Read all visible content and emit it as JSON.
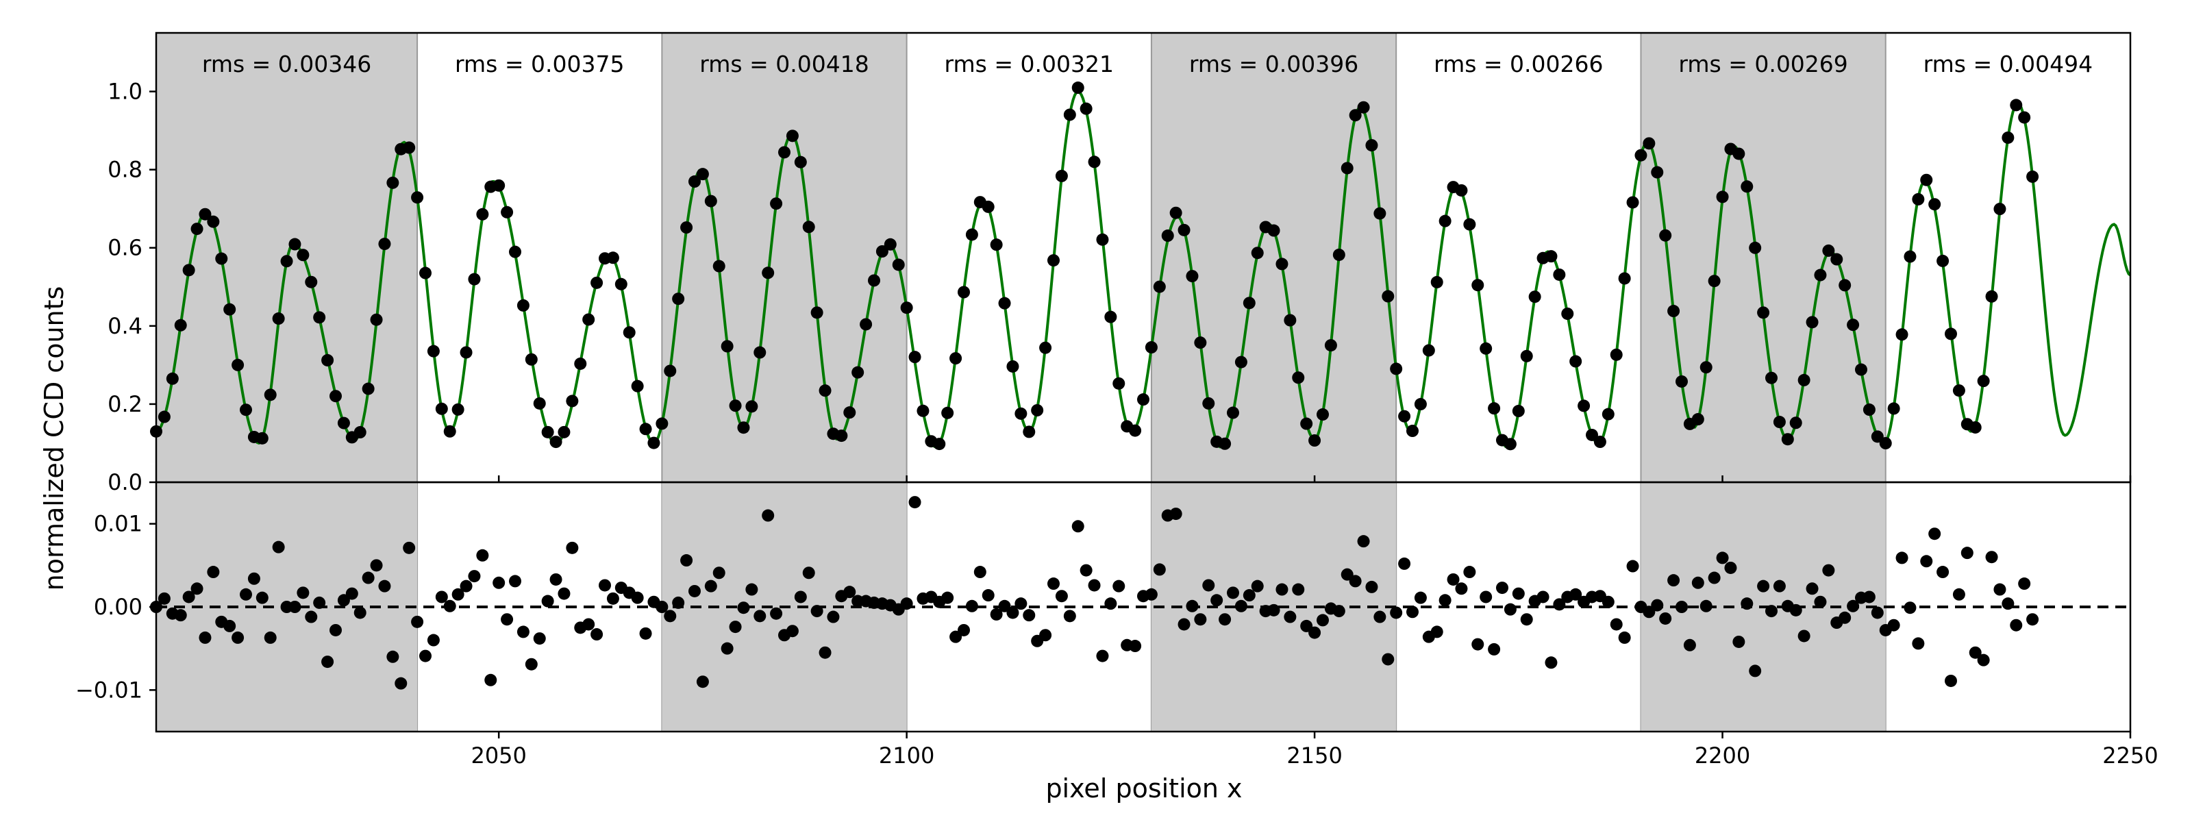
{
  "chart_data": [
    {
      "type": "scatter+line",
      "panel": "top",
      "xlabel": "",
      "ylabel": "normalized CCD counts",
      "xlim": [
        2008,
        2250
      ],
      "ylim": [
        0.0,
        1.15
      ],
      "y_ticks": [
        0.0,
        0.2,
        0.4,
        0.6,
        0.8,
        1.0
      ],
      "y_tick_labels": [
        "0.0",
        "0.2",
        "0.4",
        "0.6",
        "0.8",
        "1.0"
      ],
      "shaded_segments": [
        [
          2008,
          2040
        ],
        [
          2070,
          2100
        ],
        [
          2130,
          2160
        ],
        [
          2190,
          2220
        ]
      ],
      "segments": [
        {
          "x_range": [
            2008,
            2040
          ],
          "rms_label": "rms = 0.00346"
        },
        {
          "x_range": [
            2040,
            2070
          ],
          "rms_label": "rms = 0.00375"
        },
        {
          "x_range": [
            2070,
            2100
          ],
          "rms_label": "rms = 0.00418"
        },
        {
          "x_range": [
            2100,
            2130
          ],
          "rms_label": "rms = 0.00321"
        },
        {
          "x_range": [
            2130,
            2160
          ],
          "rms_label": "rms = 0.00396"
        },
        {
          "x_range": [
            2160,
            2190
          ],
          "rms_label": "rms = 0.00266"
        },
        {
          "x_range": [
            2190,
            2220
          ],
          "rms_label": "rms = 0.00269"
        },
        {
          "x_range": [
            2220,
            2250
          ],
          "rms_label": "rms = 0.00494"
        }
      ],
      "fit_line_color": "#007a00",
      "point_color": "#000000",
      "peaks": [
        {
          "x": 2014.1,
          "y": 0.69
        },
        {
          "x": 2024.8,
          "y": 0.61
        },
        {
          "x": 2038.4,
          "y": 0.87
        },
        {
          "x": 2049.3,
          "y": 0.77
        },
        {
          "x": 2063.6,
          "y": 0.58
        },
        {
          "x": 2074.8,
          "y": 0.8
        },
        {
          "x": 2085.9,
          "y": 0.89
        },
        {
          "x": 2097.8,
          "y": 0.61
        },
        {
          "x": 2109.4,
          "y": 0.72
        },
        {
          "x": 2121.0,
          "y": 1.0
        },
        {
          "x": 2133.2,
          "y": 0.68
        },
        {
          "x": 2144.4,
          "y": 0.66
        },
        {
          "x": 2155.6,
          "y": 0.96
        },
        {
          "x": 2167.4,
          "y": 0.76
        },
        {
          "x": 2178.6,
          "y": 0.59
        },
        {
          "x": 2190.8,
          "y": 0.87
        },
        {
          "x": 2201.4,
          "y": 0.86
        },
        {
          "x": 2213.2,
          "y": 0.59
        },
        {
          "x": 2224.8,
          "y": 0.77
        },
        {
          "x": 2236.2,
          "y": 0.97
        },
        {
          "x": 2248.0,
          "y": 0.66
        }
      ],
      "troughs": [
        {
          "x": 2008.0,
          "y": 0.13
        },
        {
          "x": 2020.6,
          "y": 0.1
        },
        {
          "x": 2032.4,
          "y": 0.11
        },
        {
          "x": 2044.0,
          "y": 0.13
        },
        {
          "x": 2057.0,
          "y": 0.1
        },
        {
          "x": 2069.0,
          "y": 0.1
        },
        {
          "x": 2080.0,
          "y": 0.14
        },
        {
          "x": 2091.5,
          "y": 0.11
        },
        {
          "x": 2103.6,
          "y": 0.09
        },
        {
          "x": 2115.0,
          "y": 0.13
        },
        {
          "x": 2127.6,
          "y": 0.13
        },
        {
          "x": 2138.5,
          "y": 0.09
        },
        {
          "x": 2150.0,
          "y": 0.11
        },
        {
          "x": 2161.8,
          "y": 0.13
        },
        {
          "x": 2173.6,
          "y": 0.09
        },
        {
          "x": 2184.8,
          "y": 0.1
        },
        {
          "x": 2196.5,
          "y": 0.14
        },
        {
          "x": 2208.0,
          "y": 0.11
        },
        {
          "x": 2219.8,
          "y": 0.1
        },
        {
          "x": 2230.5,
          "y": 0.13
        },
        {
          "x": 2242.0,
          "y": 0.12
        },
        {
          "x": 2250.0,
          "y": 0.53
        }
      ],
      "sample_step": 1.0
    },
    {
      "type": "scatter",
      "panel": "bottom",
      "xlabel": "pixel position x",
      "ylabel": "",
      "xlim": [
        2008,
        2250
      ],
      "ylim": [
        -0.015,
        0.015
      ],
      "x_ticks": [
        2050,
        2100,
        2150,
        2200,
        2250
      ],
      "x_tick_labels": [
        "2050",
        "2100",
        "2150",
        "2200",
        "2250"
      ],
      "y_ticks": [
        -0.01,
        0.0,
        0.01
      ],
      "y_tick_labels": [
        "−0.01",
        "0.00",
        "0.01"
      ],
      "zero_line": "dashed",
      "x_start": 2008,
      "x_step": 1,
      "residuals": [
        0.0,
        0.001,
        -0.0008,
        -0.001,
        0.0012,
        0.0022,
        -0.0037,
        0.0042,
        -0.0018,
        -0.0023,
        -0.0037,
        0.0015,
        0.0034,
        0.0011,
        -0.0037,
        0.0072,
        0.0,
        0.0,
        0.0017,
        -0.0012,
        0.0005,
        -0.0066,
        -0.0028,
        0.0008,
        0.0016,
        -0.0007,
        0.0035,
        0.005,
        0.0025,
        -0.006,
        -0.0092,
        0.0071,
        -0.0018,
        -0.0059,
        -0.004,
        0.0012,
        0.0001,
        0.0015,
        0.0025,
        0.0037,
        0.0062,
        -0.0088,
        0.0029,
        -0.0015,
        0.0031,
        -0.003,
        -0.0069,
        -0.0038,
        0.0007,
        0.0033,
        0.0016,
        0.0071,
        -0.0025,
        -0.0021,
        -0.0033,
        0.0026,
        0.001,
        0.0023,
        0.0017,
        0.0011,
        -0.0032,
        0.0006,
        0.0,
        -0.0011,
        0.0005,
        0.0056,
        0.0019,
        -0.009,
        0.0025,
        0.0041,
        -0.005,
        -0.0024,
        -0.0001,
        0.0021,
        -0.0011,
        0.011,
        -0.0008,
        -0.0034,
        -0.0029,
        0.0012,
        0.0041,
        -0.0005,
        -0.0055,
        -0.0012,
        0.0013,
        0.0018,
        0.0007,
        0.0007,
        0.0005,
        0.0004,
        0.0002,
        -0.0003,
        0.0004,
        0.0126,
        0.001,
        0.0012,
        0.0006,
        0.0011,
        -0.0036,
        -0.0028,
        0.0001,
        0.0042,
        0.0014,
        -0.0009,
        0.0001,
        -0.0007,
        0.0004,
        -0.001,
        -0.0041,
        -0.0034,
        0.0028,
        0.0013,
        -0.0011,
        0.0097,
        0.0044,
        0.0026,
        -0.0059,
        0.0004,
        0.0025,
        -0.0046,
        -0.0047,
        0.0013,
        0.0015,
        0.0045,
        0.011,
        0.0112,
        -0.0021,
        0.0001,
        -0.0015,
        0.0026,
        0.0008,
        -0.0015,
        0.0017,
        0.0001,
        0.0014,
        0.0025,
        -0.0005,
        -0.0004,
        0.0021,
        -0.0012,
        0.0021,
        -0.0023,
        -0.0031,
        -0.0016,
        -0.0002,
        -0.0005,
        0.0039,
        0.0031,
        0.0079,
        0.0024,
        -0.0012,
        -0.0063,
        -0.0007,
        0.0052,
        -0.0006,
        0.0011,
        -0.0036,
        -0.003,
        0.0008,
        0.0033,
        0.0022,
        0.0042,
        -0.0045,
        0.0012,
        -0.0051,
        0.0023,
        -0.0003,
        0.0016,
        -0.0015,
        0.0007,
        0.0012,
        -0.0067,
        0.0003,
        0.0012,
        0.0015,
        0.0006,
        0.0012,
        0.0013,
        0.0006,
        -0.0021,
        -0.0037,
        0.0049,
        0.0,
        -0.0006,
        0.0002,
        -0.0014,
        0.0032,
        0.0,
        -0.0046,
        0.0029,
        0.0001,
        0.0035,
        0.0059,
        0.0047,
        -0.0042,
        0.0004,
        -0.0077,
        0.0025,
        -0.0005,
        0.0025,
        0.0001,
        -0.0004,
        -0.0035,
        0.0022,
        0.0006,
        0.0044,
        -0.0019,
        -0.0013,
        0.0001,
        0.0011,
        0.0012,
        -0.0007,
        -0.0028,
        -0.0022,
        0.0059,
        -0.0001,
        -0.0044,
        0.0055,
        0.0088,
        0.0042,
        -0.0089,
        0.0015,
        0.0065,
        -0.0055,
        -0.0064,
        0.006,
        0.0021,
        0.0004,
        -0.0022,
        0.0028,
        -0.0015
      ]
    }
  ]
}
